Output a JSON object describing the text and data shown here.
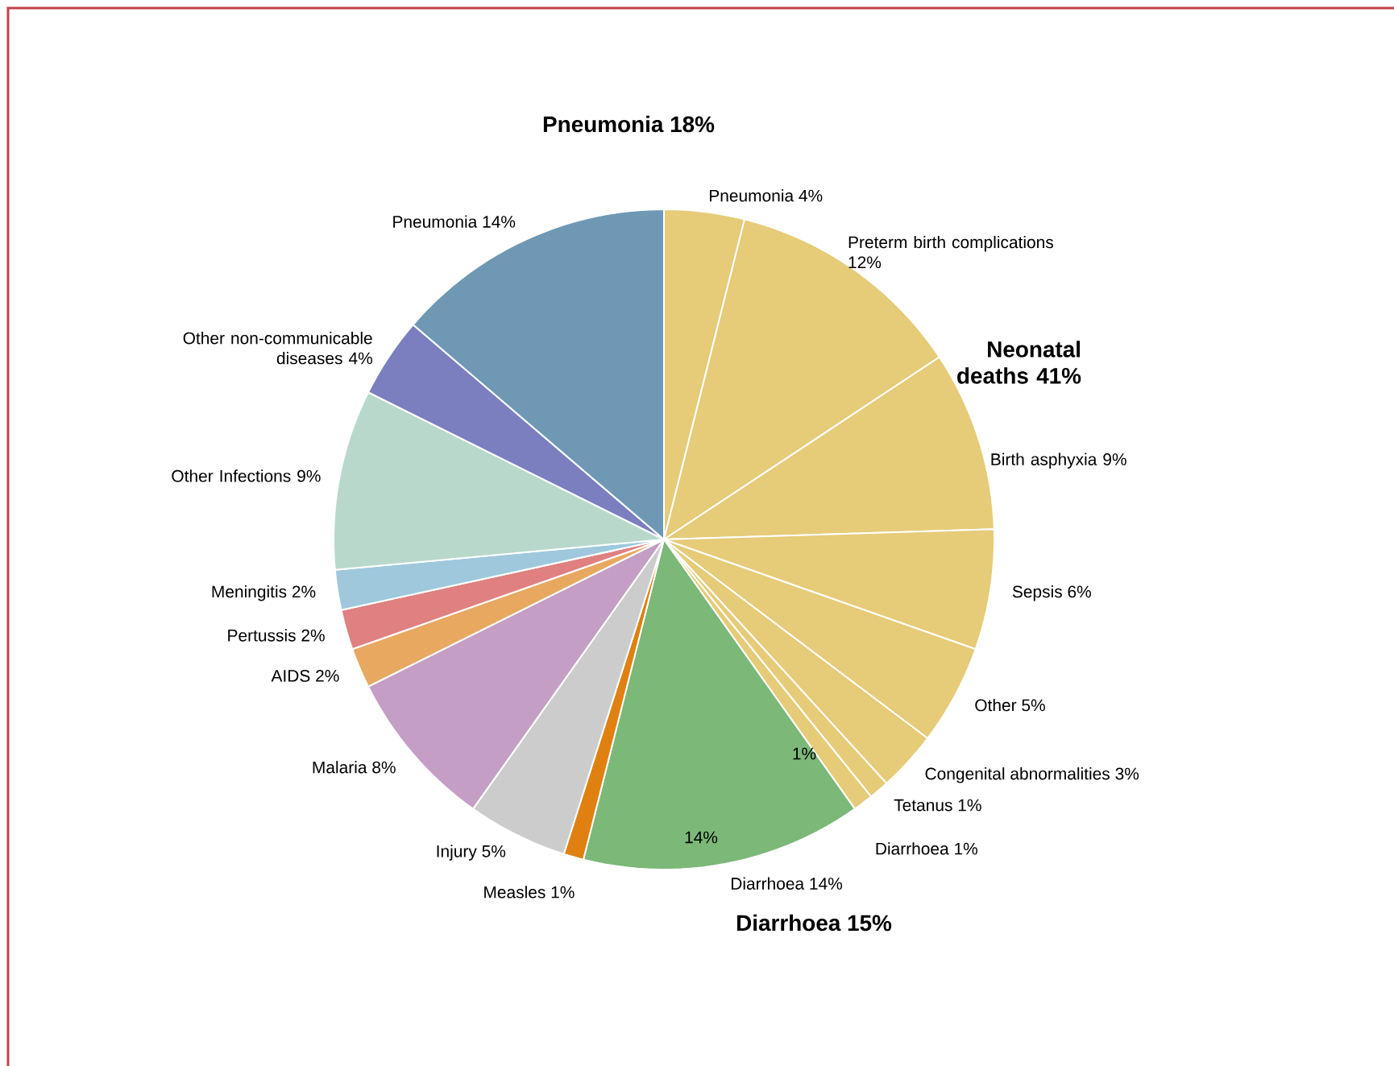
{
  "chart_data": {
    "type": "pie",
    "categories": [
      "Pneumonia",
      "Preterm birth complications",
      "Birth asphyxia",
      "Sepsis",
      "Other",
      "Congenital abnormalities",
      "Tetanus",
      "Diarrhoea",
      "Diarrhoea",
      "Measles",
      "Injury",
      "Malaria",
      "AIDS",
      "Pertussis",
      "Meningitis",
      "Other Infections",
      "Other non-communicable diseases",
      "Pneumonia"
    ],
    "values": [
      4,
      12,
      9,
      6,
      5,
      3,
      1,
      1,
      14,
      1,
      5,
      8,
      2,
      2,
      2,
      9,
      4,
      14
    ],
    "colors": [
      "#e6cb78",
      "#e6cb78",
      "#e6cb78",
      "#e6cb78",
      "#e6cb78",
      "#e6cb78",
      "#e6cb78",
      "#e6cb78",
      "#7cb878",
      "#e08010",
      "#cccccc",
      "#c49ec4",
      "#e8a860",
      "#e08080",
      "#9fc8dc",
      "#b8d8cc",
      "#7b7fbf",
      "#6f98b4"
    ],
    "annotations": [
      "Pneumonia 18%",
      "Neonatal deaths 41%",
      "Diarrhoea 15%",
      "1%",
      "14%"
    ],
    "value_labels": [
      "4%",
      "12%",
      "9%",
      "6%",
      "5%",
      "3%",
      "1%",
      "1%",
      "14%",
      "1%",
      "5%",
      "8%",
      "2%",
      "2%",
      "2%",
      "9%",
      "4%",
      "14%"
    ]
  }
}
